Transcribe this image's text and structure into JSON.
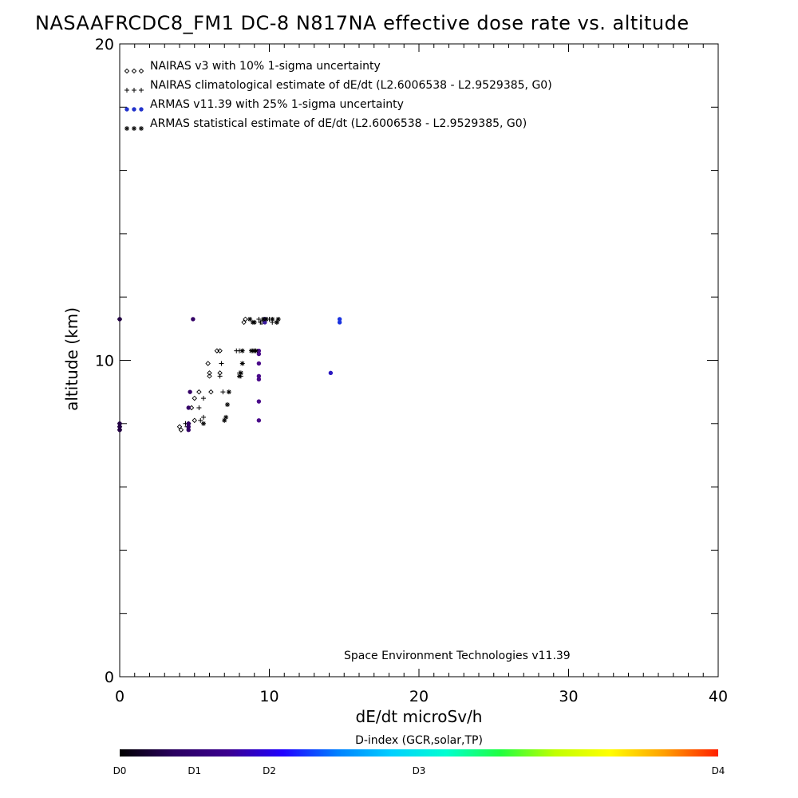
{
  "chart_data": {
    "type": "scatter",
    "title": "NASAAFRCDC8_FM1 DC-8   N817NA effective dose rate vs. altitude",
    "xlabel": "dE/dt microSv/h",
    "ylabel": "altitude (km)",
    "xlim": [
      0,
      40
    ],
    "ylim": [
      0,
      20
    ],
    "x_ticks": [
      "0",
      "10",
      "20",
      "30",
      "40"
    ],
    "y_ticks": [
      "0",
      "10",
      "20"
    ],
    "grid": false,
    "legend_position": "top-left",
    "legend": [
      {
        "label": "NAIRAS v3 with 10% 1-sigma uncertainty",
        "marker": "diamond",
        "color": "#000000"
      },
      {
        "label": "NAIRAS climatological estimate of dE/dt (L2.6006538 - L2.9529385, G0)",
        "marker": "plus",
        "color": "#000000"
      },
      {
        "label": "ARMAS v11.39 with 25% 1-sigma uncertainty",
        "marker": "dot",
        "color": "#2233cc"
      },
      {
        "label": "ARMAS statistical estimate of dE/dt (L2.6006538 - L2.9529385, G0)",
        "marker": "asterisk",
        "color": "#000000"
      }
    ],
    "annotation": "Space Environment Technologies v11.39",
    "series": [
      {
        "name": "NAIRAS v3 with 10% 1-sigma uncertainty",
        "marker": "diamond",
        "points": [
          [
            0,
            7.8
          ],
          [
            0,
            7.9
          ],
          [
            0,
            8.0
          ],
          [
            0,
            11.3
          ],
          [
            4.0,
            7.9
          ],
          [
            4.1,
            7.8
          ],
          [
            4.6,
            8.0
          ],
          [
            4.8,
            8.5
          ],
          [
            5.0,
            8.1
          ],
          [
            5.0,
            8.8
          ],
          [
            5.3,
            9.0
          ],
          [
            5.9,
            9.9
          ],
          [
            6.0,
            9.5
          ],
          [
            6.0,
            9.6
          ],
          [
            6.1,
            9.0
          ],
          [
            6.5,
            10.3
          ],
          [
            6.7,
            10.3
          ],
          [
            6.7,
            9.6
          ],
          [
            8.3,
            11.2
          ],
          [
            8.4,
            11.3
          ],
          [
            9.5,
            11.2
          ]
        ]
      },
      {
        "name": "NAIRAS climatological estimate of dE/dt (L2.6006538 - L2.9529385, G0)",
        "marker": "plus",
        "points": [
          [
            4.4,
            8.0
          ],
          [
            4.5,
            7.9
          ],
          [
            5.3,
            8.5
          ],
          [
            5.4,
            8.1
          ],
          [
            5.6,
            8.8
          ],
          [
            5.6,
            8.2
          ],
          [
            6.7,
            9.5
          ],
          [
            6.8,
            9.9
          ],
          [
            6.9,
            9.0
          ],
          [
            7.8,
            10.3
          ],
          [
            8.0,
            10.3
          ],
          [
            8.0,
            9.6
          ],
          [
            8.1,
            9.5
          ],
          [
            8.9,
            10.3
          ],
          [
            9.3,
            11.3
          ],
          [
            9.4,
            11.2
          ],
          [
            9.7,
            11.3
          ],
          [
            10.0,
            11.3
          ],
          [
            10.2,
            11.2
          ],
          [
            10.5,
            11.2
          ]
        ]
      },
      {
        "name": "ARMAS v11.39 with 25% 1-sigma uncertainty",
        "marker": "dot",
        "colored_by": "D-index",
        "points": [
          [
            0,
            7.8
          ],
          [
            0,
            7.9
          ],
          [
            0,
            8.0
          ],
          [
            0,
            11.3
          ],
          [
            4.6,
            7.8
          ],
          [
            4.6,
            7.9
          ],
          [
            4.6,
            8.0
          ],
          [
            4.6,
            8.5
          ],
          [
            4.7,
            9.0
          ],
          [
            4.9,
            11.3
          ],
          [
            9.3,
            8.1
          ],
          [
            9.3,
            8.7
          ],
          [
            9.3,
            9.4
          ],
          [
            9.3,
            9.5
          ],
          [
            9.3,
            9.9
          ],
          [
            9.3,
            10.2
          ],
          [
            9.3,
            10.3
          ],
          [
            9.7,
            11.2
          ],
          [
            9.7,
            11.3
          ],
          [
            14.1,
            9.6
          ],
          [
            14.7,
            11.2
          ],
          [
            14.7,
            11.3
          ]
        ],
        "colors": [
          "#220044",
          "#220044",
          "#220044",
          "#220044",
          "#330066",
          "#330066",
          "#330066",
          "#330066",
          "#330066",
          "#330066",
          "#4a0a8a",
          "#4a0a8a",
          "#4a0a8a",
          "#4a0a8a",
          "#4a0a8a",
          "#4a0a8a",
          "#4a0a8a",
          "#3a1aa0",
          "#3a1aa0",
          "#2a18c0",
          "#1a33e0",
          "#1a33e0"
        ]
      },
      {
        "name": "ARMAS statistical estimate of dE/dt (L2.6006538 - L2.9529385, G0)",
        "marker": "asterisk",
        "points": [
          [
            5.6,
            8.0
          ],
          [
            7.0,
            8.1
          ],
          [
            7.1,
            8.2
          ],
          [
            7.2,
            8.6
          ],
          [
            7.3,
            9.0
          ],
          [
            8.0,
            9.5
          ],
          [
            8.1,
            9.6
          ],
          [
            8.2,
            10.3
          ],
          [
            8.2,
            9.9
          ],
          [
            8.7,
            11.3
          ],
          [
            8.8,
            10.3
          ],
          [
            8.9,
            11.2
          ],
          [
            9.0,
            10.3
          ],
          [
            9.0,
            11.2
          ],
          [
            9.1,
            10.3
          ],
          [
            9.6,
            11.3
          ],
          [
            9.8,
            11.3
          ],
          [
            10.2,
            11.3
          ],
          [
            10.5,
            11.2
          ],
          [
            10.6,
            11.3
          ]
        ]
      }
    ],
    "colorbar": {
      "title": "D-index (GCR,solar,TP)",
      "labels": [
        {
          "text": "D0",
          "at": 0.0
        },
        {
          "text": "D1",
          "at": 0.125
        },
        {
          "text": "D2",
          "at": 0.25
        },
        {
          "text": "D3",
          "at": 0.5
        },
        {
          "text": "D4",
          "at": 1.0
        }
      ],
      "colors": [
        "#000000",
        "#2a0060",
        "#3b0090",
        "#2000ff",
        "#0080ff",
        "#00d0ff",
        "#00ffd0",
        "#20ff40",
        "#c0ff00",
        "#ffff00",
        "#ffa000",
        "#ff2000"
      ]
    }
  }
}
